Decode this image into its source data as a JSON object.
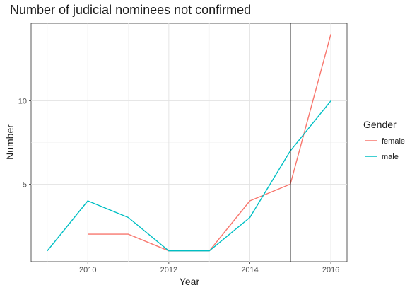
{
  "chart_data": {
    "type": "line",
    "title": "Number of judicial nominees not confirmed",
    "xlabel": "Year",
    "ylabel": "Number",
    "xlim": [
      2008.6,
      2016.4
    ],
    "ylim": [
      0.35,
      14.65
    ],
    "x_ticks": [
      2010,
      2012,
      2014,
      2016
    ],
    "y_ticks": [
      5,
      10
    ],
    "x_tick_labels": [
      "2010",
      "2012",
      "2014",
      "2016"
    ],
    "y_tick_labels": [
      "5",
      "10"
    ],
    "grid": true,
    "vline": {
      "x": 2015
    },
    "legend": {
      "title": "Gender",
      "position": "right"
    },
    "series": [
      {
        "name": "female",
        "color": "#F8766D",
        "x": [
          2010,
          2011,
          2012,
          2013,
          2014,
          2015,
          2016
        ],
        "y": [
          2,
          2,
          1,
          1,
          4,
          5,
          14
        ]
      },
      {
        "name": "male",
        "color": "#00BFC4",
        "x": [
          2009,
          2010,
          2011,
          2012,
          2013,
          2014,
          2015,
          2016
        ],
        "y": [
          1,
          4,
          3,
          1,
          1,
          3,
          7,
          10
        ]
      }
    ]
  }
}
